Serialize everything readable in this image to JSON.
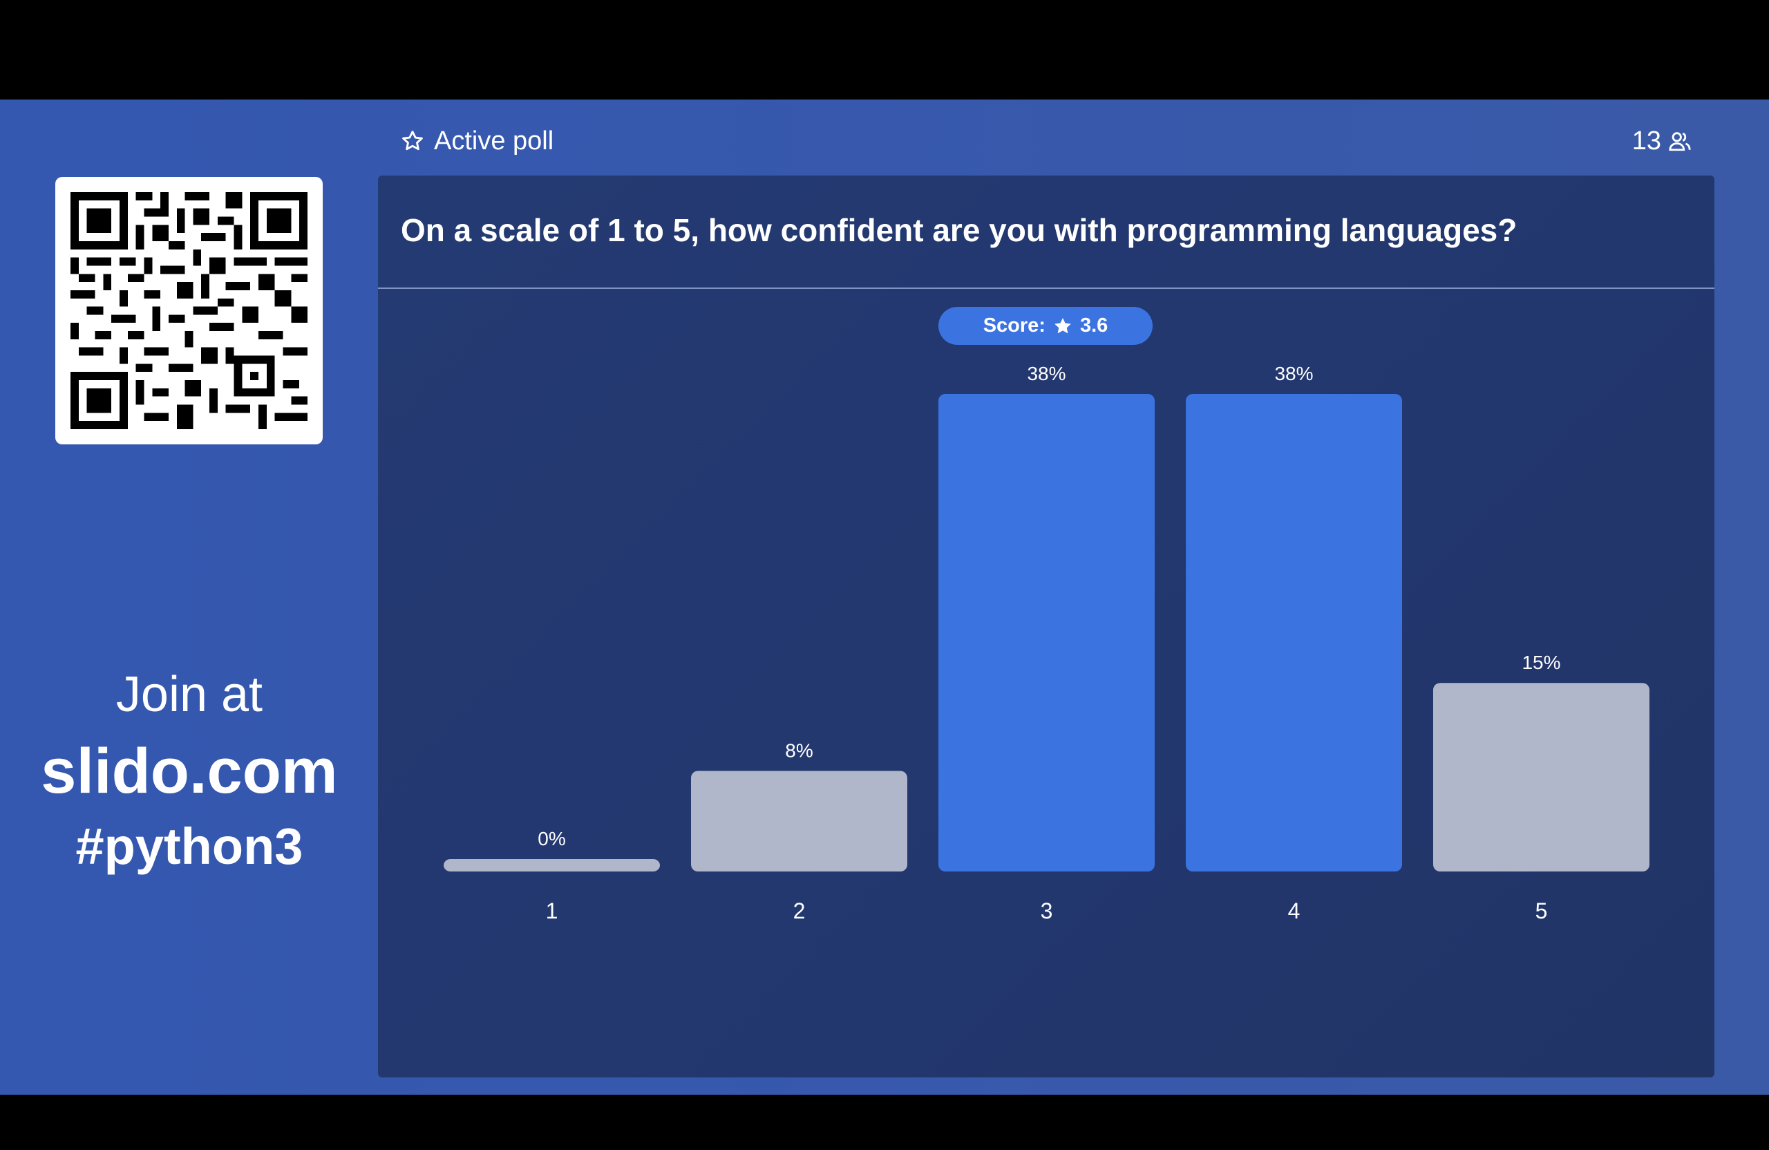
{
  "poll": {
    "status_label": "Active poll",
    "participants_count": "13",
    "question": "On a scale of 1 to 5, how confident are you with programming languages?",
    "score_label": "Score:",
    "score_value": "3.6"
  },
  "join": {
    "line1": "Join at",
    "site": "slido.com",
    "code": "#python3"
  },
  "colors": {
    "highlight_bar": "#3b73e0",
    "normal_bar": "#b0b7ca",
    "panel": "#23386f",
    "background": "#3457b0"
  },
  "icons": {
    "status": "star-outline-icon",
    "participants": "people-icon",
    "score": "star-filled-icon"
  },
  "chart_data": {
    "type": "bar",
    "categories": [
      "1",
      "2",
      "3",
      "4",
      "5"
    ],
    "values": [
      0,
      8,
      38,
      38,
      15
    ],
    "value_labels": [
      "0%",
      "8%",
      "38%",
      "38%",
      "15%"
    ],
    "highlighted": [
      false,
      false,
      true,
      true,
      false
    ],
    "ylim": [
      0,
      38
    ],
    "grid": false
  }
}
